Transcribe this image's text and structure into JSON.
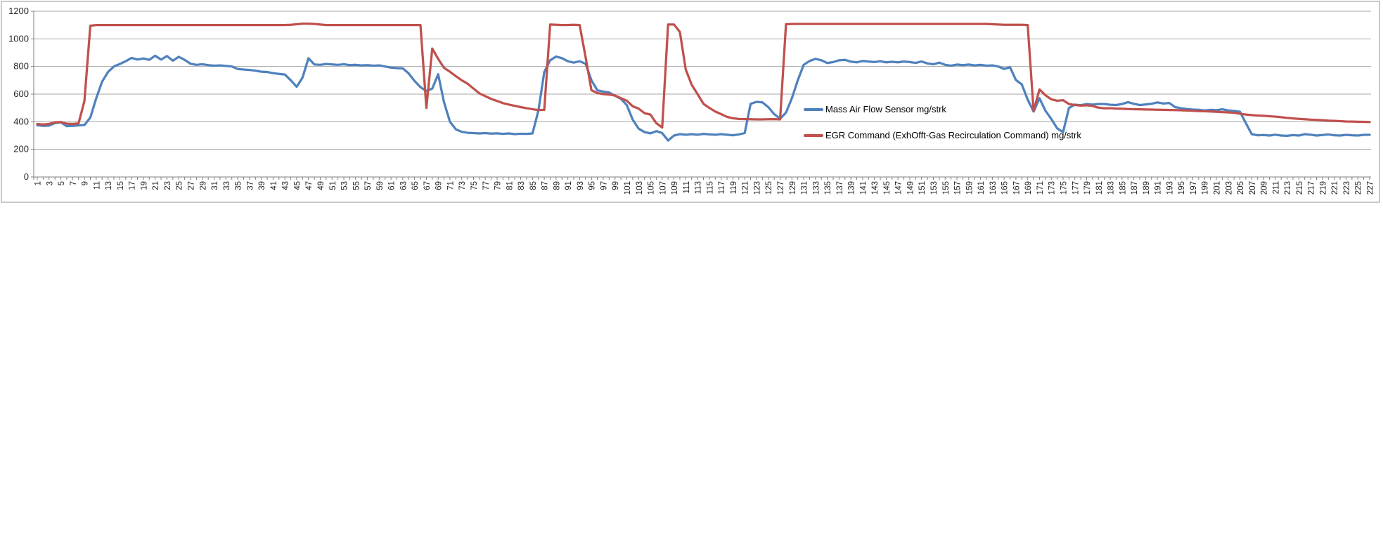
{
  "chart_data": {
    "type": "line",
    "title": "",
    "xlabel": "",
    "ylabel": "",
    "x_axis": {
      "count": 227,
      "first_label": 1,
      "last_label": 227,
      "label_step": 2
    },
    "y_axis": {
      "min": 0,
      "max": 1200,
      "step": 200,
      "ticks": [
        0,
        200,
        400,
        600,
        800,
        1000,
        1200
      ]
    },
    "grid": "horizontal",
    "legend_position": "right-middle-overlay",
    "gridline_color": "#A6A6A6",
    "axis_color": "#808080",
    "label_color": "#262626",
    "series": [
      {
        "name": "Mass Air Flow Sensor mg/strk",
        "color": "#4F81BD",
        "values": [
          375,
          370,
          372,
          390,
          396,
          368,
          370,
          374,
          376,
          430,
          570,
          690,
          760,
          800,
          818,
          838,
          862,
          850,
          858,
          848,
          878,
          850,
          876,
          842,
          870,
          848,
          820,
          812,
          816,
          810,
          806,
          808,
          804,
          800,
          782,
          778,
          775,
          770,
          762,
          760,
          752,
          746,
          742,
          700,
          653,
          720,
          860,
          815,
          812,
          818,
          815,
          812,
          816,
          810,
          812,
          808,
          810,
          806,
          808,
          800,
          792,
          788,
          786,
          750,
          695,
          650,
          622,
          640,
          744,
          540,
          400,
          345,
          327,
          320,
          318,
          315,
          318,
          314,
          316,
          312,
          315,
          310,
          313,
          312,
          315,
          480,
          760,
          845,
          872,
          860,
          838,
          828,
          838,
          820,
          700,
          628,
          618,
          612,
          588,
          566,
          520,
          415,
          350,
          325,
          316,
          332,
          318,
          264,
          300,
          310,
          306,
          310,
          306,
          312,
          308,
          306,
          310,
          306,
          302,
          308,
          318,
          530,
          544,
          540,
          506,
          455,
          422,
          466,
          570,
          700,
          812,
          840,
          855,
          845,
          825,
          832,
          845,
          848,
          835,
          830,
          840,
          836,
          832,
          838,
          830,
          834,
          830,
          836,
          832,
          826,
          836,
          822,
          816,
          828,
          812,
          806,
          814,
          810,
          814,
          808,
          812,
          806,
          808,
          800,
          782,
          795,
          702,
          670,
          560,
          474,
          570,
          480,
          420,
          352,
          325,
          500,
          524,
          520,
          528,
          524,
          528,
          528,
          523,
          521,
          528,
          542,
          530,
          521,
          525,
          530,
          540,
          532,
          536,
          506,
          498,
          492,
          488,
          486,
          482,
          486,
          484,
          490,
          482,
          478,
          472,
          390,
          310,
          302,
          304,
          300,
          306,
          300,
          298,
          303,
          300,
          310,
          306,
          300,
          304,
          308,
          302,
          300,
          305,
          302,
          300,
          305,
          305
        ]
      },
      {
        "name": "EGR Command  (ExhOfft-Gas  Recirculation Command)  mg/strk",
        "color": "#C0504D",
        "values": [
          383,
          380,
          384,
          396,
          398,
          386,
          384,
          388,
          550,
          1095,
          1100,
          1100,
          1100,
          1100,
          1100,
          1100,
          1100,
          1100,
          1100,
          1100,
          1100,
          1100,
          1100,
          1100,
          1100,
          1100,
          1100,
          1100,
          1100,
          1100,
          1100,
          1100,
          1100,
          1100,
          1100,
          1100,
          1100,
          1100,
          1100,
          1100,
          1100,
          1100,
          1100,
          1102,
          1106,
          1110,
          1110,
          1108,
          1104,
          1100,
          1100,
          1100,
          1100,
          1100,
          1100,
          1100,
          1100,
          1100,
          1100,
          1100,
          1100,
          1100,
          1100,
          1100,
          1100,
          1100,
          500,
          930,
          855,
          790,
          762,
          730,
          700,
          675,
          640,
          605,
          585,
          565,
          550,
          535,
          524,
          515,
          506,
          498,
          491,
          484,
          486,
          1104,
          1102,
          1100,
          1100,
          1102,
          1100,
          870,
          628,
          608,
          600,
          597,
          590,
          570,
          552,
          512,
          495,
          462,
          452,
          390,
          358,
          1104,
          1104,
          1050,
          778,
          668,
          600,
          530,
          500,
          474,
          455,
          435,
          425,
          420,
          419,
          418,
          417,
          417,
          418,
          419,
          417,
          1106,
          1108,
          1108,
          1108,
          1108,
          1108,
          1108,
          1108,
          1108,
          1108,
          1108,
          1108,
          1108,
          1108,
          1108,
          1108,
          1108,
          1108,
          1108,
          1108,
          1108,
          1108,
          1108,
          1108,
          1108,
          1108,
          1108,
          1108,
          1108,
          1108,
          1108,
          1108,
          1108,
          1108,
          1108,
          1106,
          1104,
          1102,
          1102,
          1102,
          1102,
          1100,
          478,
          634,
          592,
          562,
          552,
          556,
          528,
          521,
          517,
          519,
          514,
          502,
          497,
          498,
          495,
          494,
          492,
          491,
          490,
          489,
          488,
          487,
          486,
          485,
          484,
          483,
          481,
          479,
          477,
          476,
          474,
          472,
          470,
          468,
          465,
          458,
          452,
          448,
          445,
          443,
          440,
          437,
          433,
          428,
          424,
          421,
          418,
          415,
          413,
          411,
          408,
          406,
          404,
          402,
          401,
          400,
          399,
          398
        ]
      }
    ]
  },
  "legend": {
    "entries": [
      {
        "label": "Mass Air Flow Sensor mg/strk",
        "color": "#4F81BD"
      },
      {
        "label": "EGR Command  (ExhOfft-Gas  Recirculation Command)  mg/strk",
        "color": "#C0504D"
      }
    ]
  }
}
